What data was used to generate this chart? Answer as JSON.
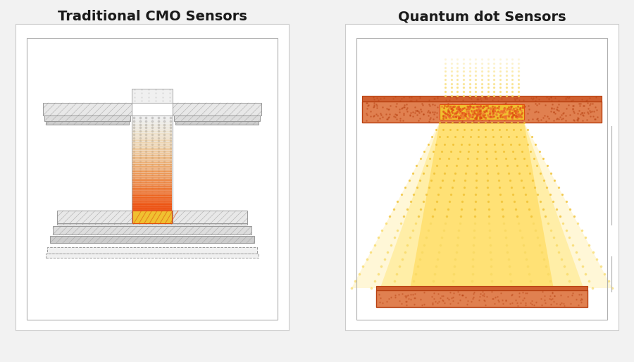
{
  "bg_color": "#f2f2f2",
  "title_left": "Traditional CMO Sensors",
  "title_right": "Quantum dot Sensors",
  "title_fontsize": 14,
  "title_fontweight": "bold",
  "colors": {
    "gray_line": "#999999",
    "gray_face": "#e8e8e8",
    "gray_dark": "#cccccc",
    "gray_mid": "#dddddd",
    "gray_light": "#f0f0f0",
    "orange_deep": "#e05010",
    "orange_mid": "#f07030",
    "orange_light": "#f8a060",
    "gold": "#f0c030",
    "gold_light": "#f8d860",
    "yellow": "#ffe880",
    "yellow_pale": "#fff8c0",
    "brick": "#b84010",
    "brick_mid": "#d06030",
    "brick_light": "#e08050",
    "dot_gray": "#aaaaaa",
    "dot_orange": "#e09030",
    "panel_bg": "#ffffff",
    "panel_border": "#cccccc",
    "text_color": "#1a1a1a"
  }
}
